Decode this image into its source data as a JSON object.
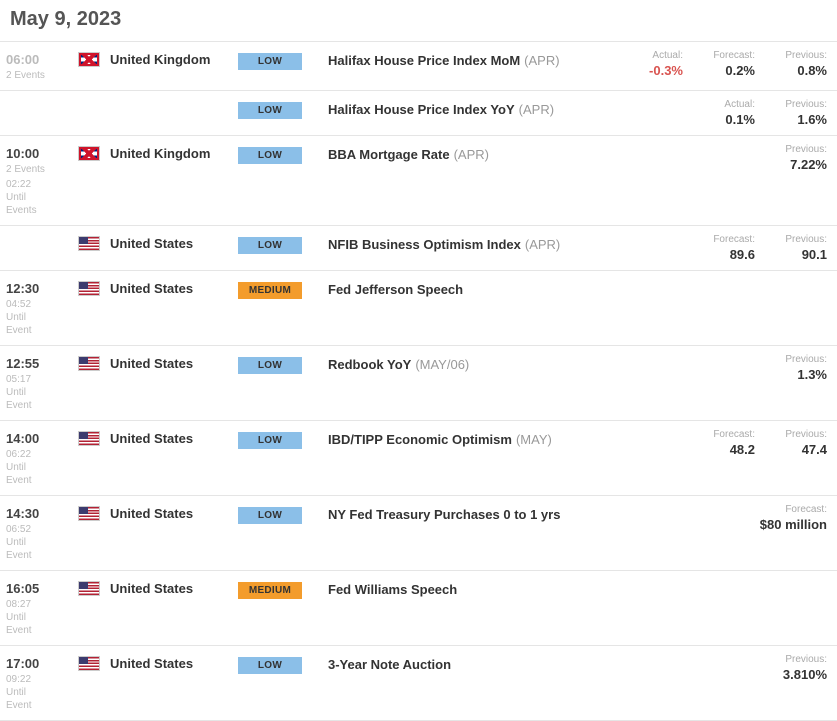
{
  "date": "May 9, 2023",
  "labels": {
    "actual": "Actual:",
    "forecast": "Forecast:",
    "previous": "Previous:",
    "until_event": "Until\nEvent",
    "events": "Events"
  },
  "impact": {
    "low": "LOW",
    "medium": "MEDIUM"
  },
  "rows": [
    {
      "time": "06:00",
      "time_faded": true,
      "sub": "2 Events",
      "sub2": "",
      "flag": "uk",
      "country": "United Kingdom",
      "impact": "low",
      "event": "Halifax House Price Index MoM",
      "period": "(APR)",
      "actual": "-0.3%",
      "actual_neg": true,
      "forecast": "0.2%",
      "previous": "0.8%"
    },
    {
      "continuation": true,
      "impact": "low",
      "event": "Halifax House Price Index YoY",
      "period": "(APR)",
      "actual": "0.1%",
      "previous": "1.6%"
    },
    {
      "time": "10:00",
      "sub": "2 Events",
      "sub2": "02:22\nUntil\nEvents",
      "flag": "uk",
      "country": "United Kingdom",
      "impact": "low",
      "event": "BBA Mortgage Rate",
      "period": "(APR)",
      "previous": "7.22%"
    },
    {
      "continuation": true,
      "flag": "us",
      "country": "United States",
      "impact": "low",
      "event": "NFIB Business Optimism Index",
      "period": "(APR)",
      "forecast": "89.6",
      "previous": "90.1"
    },
    {
      "time": "12:30",
      "sub2": "04:52\nUntil\nEvent",
      "flag": "us",
      "country": "United States",
      "impact": "medium",
      "event": "Fed Jefferson Speech",
      "period": ""
    },
    {
      "time": "12:55",
      "sub2": "05:17\nUntil\nEvent",
      "flag": "us",
      "country": "United States",
      "impact": "low",
      "event": "Redbook YoY",
      "period": "(MAY/06)",
      "previous": "1.3%"
    },
    {
      "time": "14:00",
      "sub2": "06:22\nUntil\nEvent",
      "flag": "us",
      "country": "United States",
      "impact": "low",
      "event": "IBD/TIPP Economic Optimism",
      "period": "(MAY)",
      "forecast": "48.2",
      "previous": "47.4"
    },
    {
      "time": "14:30",
      "sub2": "06:52\nUntil\nEvent",
      "flag": "us",
      "country": "United States",
      "impact": "low",
      "event": "NY Fed Treasury Purchases 0 to 1 yrs",
      "period": "",
      "forecast": "$80 million",
      "forecast_wide": true
    },
    {
      "time": "16:05",
      "sub2": "08:27\nUntil\nEvent",
      "flag": "us",
      "country": "United States",
      "impact": "medium",
      "event": "Fed Williams Speech",
      "period": ""
    },
    {
      "time": "17:00",
      "sub2": "09:22\nUntil\nEvent",
      "flag": "us",
      "country": "United States",
      "impact": "low",
      "event": "3-Year Note Auction",
      "period": "",
      "previous": "3.810%"
    }
  ]
}
